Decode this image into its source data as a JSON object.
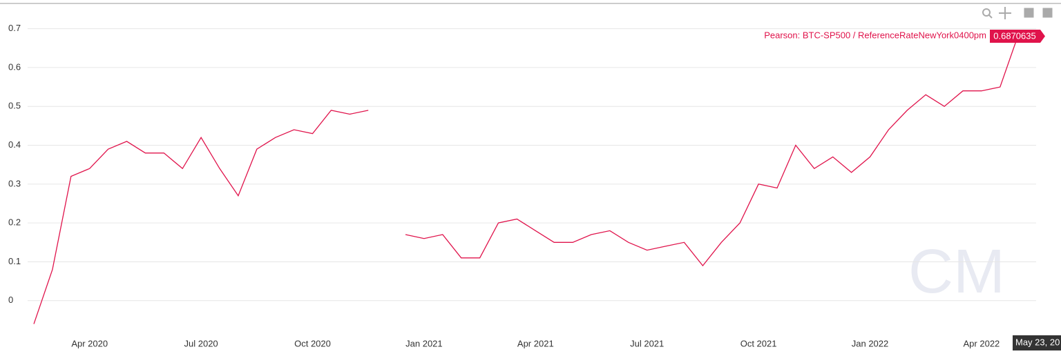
{
  "chart_data": {
    "type": "line",
    "categories": [
      null,
      null,
      null,
      "Apr 2020",
      null,
      null,
      null,
      null,
      null,
      "Jul 2020",
      null,
      null,
      null,
      null,
      null,
      "Oct 2020",
      null,
      null,
      null,
      null,
      null,
      "Jan 2021",
      null,
      null,
      null,
      null,
      null,
      "Apr 2021",
      null,
      null,
      null,
      null,
      null,
      "Jul 2021",
      null,
      null,
      null,
      null,
      null,
      "Oct 2021",
      null,
      null,
      null,
      null,
      null,
      "Jan 2022",
      null,
      null,
      null,
      null,
      null,
      "Apr 2022",
      null,
      null
    ],
    "series": [
      {
        "name": "Pearson: BTC-SP500 / ReferenceRateNewYork0400pm",
        "color": "#e0134b",
        "values": [
          -0.06,
          0.08,
          0.32,
          0.34,
          0.39,
          0.41,
          0.38,
          0.38,
          0.34,
          0.42,
          0.34,
          0.27,
          0.39,
          0.42,
          0.44,
          0.43,
          0.49,
          0.48,
          0.49,
          null,
          0.17,
          0.16,
          0.17,
          0.11,
          0.11,
          0.2,
          0.21,
          0.18,
          0.15,
          0.15,
          0.17,
          0.18,
          0.15,
          0.13,
          0.14,
          0.15,
          0.09,
          0.15,
          0.2,
          0.3,
          0.29,
          0.4,
          0.34,
          0.37,
          0.33,
          0.37,
          0.44,
          0.49,
          0.53,
          0.5,
          0.54,
          0.54,
          0.55,
          0.6870635
        ]
      }
    ],
    "ylim": [
      -0.075,
      0.765
    ],
    "yticks": [
      0,
      0.1,
      0.2,
      0.3,
      0.4,
      0.5,
      0.6,
      0.7
    ],
    "grid": true,
    "hover_date_label": "May 23, 20",
    "watermark": "CM"
  }
}
